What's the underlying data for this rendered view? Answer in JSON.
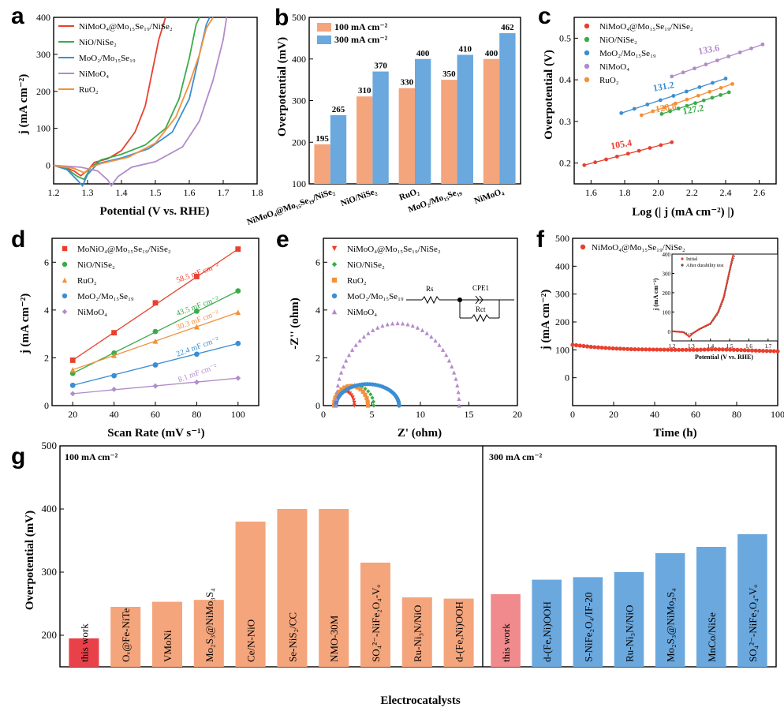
{
  "panel_labels": [
    "a",
    "b",
    "c",
    "d",
    "e",
    "f",
    "g"
  ],
  "colors": {
    "red": "#e8402e",
    "green": "#3aab4a",
    "blue": "#3b8ed3",
    "purple": "#b38acb",
    "orange": "#f2913b",
    "barOrange": "#f4a57c",
    "barBlue": "#6aa8de",
    "gRed": "#e8414a",
    "gRed2": "#f08a8c"
  },
  "texts": {
    "a_xlabel": "Potential (V vs. RHE)",
    "a_ylabel": "j (mA cm⁻²)",
    "b_ylabel": "Overpotential (mV)",
    "b_leg1": "100 mA cm⁻²",
    "b_leg2": "300 mA cm⁻²",
    "c_xlabel": "Log (| j (mA cm⁻²) |)",
    "c_ylabel": "Overpotential (V)",
    "d_xlabel": "Scan Rate (mV s⁻¹)",
    "d_ylabel": "j (mA cm⁻²)",
    "e_xlabel": "Z' (ohm)",
    "e_ylabel": "-Z'' (ohm)",
    "e_rs": "Rs",
    "e_cpe": "CPE1",
    "e_rct": "Rct",
    "f_xlabel": "Time (h)",
    "f_ylabel": "j (mA cm⁻²)",
    "f_legend": "NiMoO₄@Mo₁₅Se₁₉/NiSe₂",
    "f_inset_ylabel": "j (mA cm⁻²)",
    "f_inset_xlabel": "Potential (V vs. RHE)",
    "f_inset_leg1": "Initial",
    "f_inset_leg2": "After durability test",
    "g_ylabel": "Overpotential (mV)",
    "g_xlabel": "Electrocatalysts",
    "g_region1": "100 mA cm⁻²",
    "g_region2": "300 mA cm⁻²"
  },
  "chart_data": [
    {
      "panel": "a",
      "type": "line",
      "xlabel": "Potential (V vs. RHE)",
      "ylabel": "j (mA cm⁻²)",
      "xlim": [
        1.2,
        1.8
      ],
      "ylim": [
        -50,
        400
      ],
      "xticks": [
        1.2,
        1.3,
        1.4,
        1.5,
        1.6,
        1.7,
        1.8
      ],
      "yticks": [
        0,
        100,
        200,
        300,
        400
      ],
      "series": [
        {
          "name": "NiMoO₄@Mo₁₅Se₁₉/NiSe₂",
          "color": "#e8402e",
          "x": [
            1.2,
            1.23,
            1.26,
            1.28,
            1.3,
            1.32,
            1.36,
            1.4,
            1.44,
            1.47,
            1.49,
            1.51,
            1.53
          ],
          "y": [
            0,
            -5,
            -15,
            -28,
            -14,
            8,
            18,
            40,
            90,
            160,
            250,
            340,
            400
          ]
        },
        {
          "name": "NiO/NiSe₂",
          "color": "#3aab4a",
          "x": [
            1.2,
            1.24,
            1.27,
            1.29,
            1.31,
            1.34,
            1.4,
            1.47,
            1.53,
            1.57,
            1.6,
            1.62,
            1.63
          ],
          "y": [
            0,
            -10,
            -30,
            -38,
            -5,
            15,
            30,
            55,
            100,
            180,
            290,
            380,
            400
          ]
        },
        {
          "name": "MoO₂/Mo₁₅Se₁₉",
          "color": "#3b8ed3",
          "x": [
            1.2,
            1.24,
            1.27,
            1.285,
            1.3,
            1.33,
            1.4,
            1.48,
            1.55,
            1.6,
            1.63,
            1.65,
            1.66
          ],
          "y": [
            0,
            -12,
            -40,
            -55,
            -25,
            5,
            20,
            45,
            90,
            180,
            300,
            380,
            400
          ]
        },
        {
          "name": "NiMoO₄",
          "color": "#b38acb",
          "x": [
            1.2,
            1.28,
            1.33,
            1.36,
            1.37,
            1.39,
            1.43,
            1.5,
            1.58,
            1.63,
            1.67,
            1.7,
            1.71
          ],
          "y": [
            0,
            -5,
            -15,
            -40,
            -55,
            -30,
            -5,
            10,
            50,
            120,
            230,
            340,
            400
          ]
        },
        {
          "name": "RuO₂",
          "color": "#f2913b",
          "x": [
            1.2,
            1.26,
            1.29,
            1.31,
            1.34,
            1.42,
            1.5,
            1.56,
            1.6,
            1.63,
            1.65,
            1.67
          ],
          "y": [
            0,
            -8,
            -20,
            -5,
            5,
            22,
            60,
            130,
            220,
            300,
            370,
            400
          ]
        }
      ]
    },
    {
      "panel": "b",
      "type": "bar",
      "ylabel": "Overpotential (mV)",
      "ylim": [
        100,
        500
      ],
      "yticks": [
        100,
        200,
        300,
        400,
        500
      ],
      "categories": [
        "NiMoO₄@Mo₁₅Se₁₉/NiSe₂",
        "NiO/NiSe₂",
        "RuO₂",
        "MoO₂/Mo₁₅Se₁₉",
        "NiMoO₄"
      ],
      "series": [
        {
          "name": "100 mA cm⁻²",
          "color": "#f4a57c",
          "values": [
            195,
            310,
            330,
            350,
            400
          ]
        },
        {
          "name": "300 mA cm⁻²",
          "color": "#6aa8de",
          "values": [
            265,
            370,
            400,
            410,
            462
          ]
        }
      ]
    },
    {
      "panel": "c",
      "type": "scatter",
      "xlabel": "Log (| j (mA cm⁻²) |)",
      "ylabel": "Overpotential (V)",
      "xlim": [
        1.5,
        2.7
      ],
      "ylim": [
        0.15,
        0.55
      ],
      "xticks": [
        1.6,
        1.8,
        2.0,
        2.2,
        2.4,
        2.6
      ],
      "yticks": [
        0.2,
        0.3,
        0.4,
        0.5
      ],
      "series": [
        {
          "name": "NiMoO₄@Mo₁₅Se₁₉/NiSe₂",
          "color": "#e8402e",
          "slope_label": "105.4",
          "x": [
            1.56,
            2.08
          ],
          "y": [
            0.195,
            0.25
          ]
        },
        {
          "name": "NiO/NiSe₂",
          "color": "#3aab4a",
          "slope_label": "127.2",
          "x": [
            2.02,
            2.42
          ],
          "y": [
            0.318,
            0.37
          ]
        },
        {
          "name": "MoO₂/Mo₁₅Se₁₉",
          "color": "#3b8ed3",
          "slope_label": "131.2",
          "x": [
            1.78,
            2.4
          ],
          "y": [
            0.32,
            0.403
          ]
        },
        {
          "name": "NiMoO₄",
          "color": "#b38acb",
          "slope_label": "133.6",
          "x": [
            2.08,
            2.62
          ],
          "y": [
            0.408,
            0.485
          ]
        },
        {
          "name": "RuO₂",
          "color": "#f2913b",
          "slope_label": "128.8",
          "x": [
            1.9,
            2.44
          ],
          "y": [
            0.315,
            0.39
          ]
        }
      ]
    },
    {
      "panel": "d",
      "type": "scatter",
      "xlabel": "Scan Rate (mV s⁻¹)",
      "ylabel": "j (mA cm⁻²)",
      "xlim": [
        10,
        110
      ],
      "ylim": [
        0,
        7
      ],
      "xticks": [
        20,
        40,
        60,
        80,
        100
      ],
      "yticks": [
        0,
        2,
        4,
        6
      ],
      "series": [
        {
          "name": "MoNiO₄@Mo₁₅Se₁₉/NiSe₂",
          "color": "#e8402e",
          "marker": "square",
          "slope_label": "58.5 mF cm⁻²",
          "x": [
            20,
            40,
            60,
            80,
            100
          ],
          "y": [
            1.9,
            3.05,
            4.3,
            5.4,
            6.55
          ]
        },
        {
          "name": "NiO/NiSe₂",
          "color": "#3aab4a",
          "marker": "circle",
          "slope_label": "43.5 mF cm⁻²",
          "x": [
            20,
            40,
            60,
            80,
            100
          ],
          "y": [
            1.35,
            2.2,
            3.1,
            3.95,
            4.8
          ]
        },
        {
          "name": "RuO₂",
          "color": "#f2913b",
          "marker": "triangle",
          "slope_label": "30.3 mF cm⁻²",
          "x": [
            20,
            40,
            60,
            80,
            100
          ],
          "y": [
            1.5,
            2.1,
            2.7,
            3.3,
            3.9
          ]
        },
        {
          "name": "MoO₂/Mo₁₅Se₁₉",
          "color": "#3b8ed3",
          "marker": "circle",
          "slope_label": "22.4 mF cm⁻²",
          "x": [
            20,
            40,
            60,
            80,
            100
          ],
          "y": [
            0.85,
            1.25,
            1.7,
            2.15,
            2.6
          ]
        },
        {
          "name": "NiMoO₄",
          "color": "#b38acb",
          "marker": "diamond",
          "slope_label": "8.1 mF cm⁻²",
          "x": [
            20,
            40,
            60,
            80,
            100
          ],
          "y": [
            0.5,
            0.68,
            0.82,
            0.98,
            1.15
          ]
        }
      ]
    },
    {
      "panel": "e",
      "type": "scatter",
      "xlabel": "Z' (ohm)",
      "ylabel": "-Z'' (ohm)",
      "xlim": [
        0,
        20
      ],
      "ylim": [
        0,
        7
      ],
      "xticks": [
        0,
        5,
        10,
        15,
        20
      ],
      "yticks": [
        0,
        2,
        4,
        6
      ],
      "series": [
        {
          "name": "NiMoO₄@Mo₁₅Se₁₉/NiSe₂",
          "color": "#e8402e",
          "marker": "triangle-down",
          "arc": [
            1.1,
            3.2,
            0.6
          ]
        },
        {
          "name": "NiO/NiSe₂",
          "color": "#3aab4a",
          "marker": "diamond",
          "arc": [
            1.2,
            5.2,
            0.85
          ]
        },
        {
          "name": "RuO₂",
          "color": "#f2913b",
          "marker": "square",
          "arc": [
            1.1,
            4.6,
            0.82
          ]
        },
        {
          "name": "MoO₂/Mo₁₅Se₁₉",
          "color": "#3b8ed3",
          "marker": "circle",
          "arc": [
            1.3,
            7.8,
            0.9
          ]
        },
        {
          "name": "NiMoO₄",
          "color": "#b38acb",
          "marker": "triangle",
          "arc": [
            1.3,
            14.0,
            3.45
          ]
        }
      ]
    },
    {
      "panel": "f",
      "type": "scatter",
      "xlabel": "Time (h)",
      "ylabel": "j (mA cm⁻²)",
      "xlim": [
        0,
        100
      ],
      "ylim": [
        -100,
        500
      ],
      "xticks": [
        0,
        20,
        40,
        60,
        80,
        100
      ],
      "yticks": [
        0,
        100,
        200,
        300,
        400,
        500
      ],
      "series": [
        {
          "name": "NiMoO₄@Mo₁₅Se₁₉/NiSe₂",
          "color": "#e8402e",
          "x": [
            0,
            10,
            20,
            30,
            40,
            50,
            60,
            70,
            80,
            90,
            100
          ],
          "y": [
            118,
            110,
            105,
            102,
            101,
            100,
            100,
            102,
            100,
            97,
            95
          ]
        }
      ],
      "inset": {
        "xlabel": "Potential (V vs. RHE)",
        "ylabel": "j (mA cm⁻²)",
        "xlim": [
          1.2,
          1.75
        ],
        "ylim": [
          -50,
          400
        ],
        "xticks": [
          1.2,
          1.3,
          1.4,
          1.5,
          1.6,
          1.7
        ],
        "yticks": [
          0,
          100,
          200,
          300,
          400
        ],
        "series": [
          {
            "name": "Initial",
            "color": "#e8402e",
            "x": [
              1.2,
              1.26,
              1.29,
              1.31,
              1.34,
              1.4,
              1.44,
              1.47,
              1.49,
              1.51,
              1.52
            ],
            "y": [
              0,
              -5,
              -28,
              -10,
              10,
              40,
              100,
              180,
              270,
              360,
              400
            ]
          },
          {
            "name": "After durability test",
            "color": "#555555",
            "x": [
              1.2,
              1.26,
              1.29,
              1.31,
              1.34,
              1.4,
              1.44,
              1.47,
              1.49,
              1.51,
              1.53
            ],
            "y": [
              0,
              -3,
              -15,
              -6,
              8,
              35,
              90,
              165,
              255,
              345,
              400
            ]
          }
        ]
      }
    },
    {
      "panel": "g",
      "type": "bar",
      "xlabel": "Electrocatalysts",
      "ylabel": "Overpotential (mV)",
      "ylim": [
        150,
        500
      ],
      "yticks": [
        200,
        300,
        400,
        500
      ],
      "groups": [
        {
          "name": "100 mA cm⁻²",
          "categories": [
            "this work",
            "Oᵥ@Fe-NiTe",
            "VMoNi",
            "Mo₂S₃@NiMo₃S₄",
            "Ce/N-NiO",
            "Se-NiS₂/CC",
            "NMO-30M",
            "SO₄²⁻-NiFe₂O₄-Vₒ",
            "Ru-Ni₃N/NiO",
            "d-(Fe,Ni)OOH"
          ],
          "values": [
            195,
            245,
            253,
            256,
            380,
            400,
            400,
            315,
            260,
            258
          ]
        },
        {
          "name": "300 mA cm⁻²",
          "categories": [
            "this work",
            "d-(Fe,Ni)OOH",
            "S-NiFe₂O₄/IF-20",
            "Ru-Ni₃N/NiO",
            "Mo₂S₃@NiMo₃S₄",
            "MnCo/NiSe",
            "SO₄²⁻-NiFe₂O₄-Vₒ"
          ],
          "values": [
            265,
            288,
            292,
            300,
            330,
            340,
            360
          ]
        }
      ]
    }
  ]
}
